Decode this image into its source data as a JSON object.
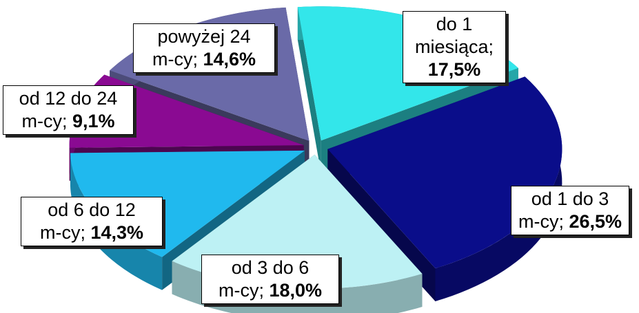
{
  "chart_data": {
    "type": "pie",
    "variant": "3d-exploded",
    "slices": [
      {
        "label_lines": [
          "do 1",
          "miesiąca;"
        ],
        "value_text": "17,5%",
        "value": 17.5,
        "color": "#33e6ea"
      },
      {
        "label_lines": [
          "od 1 do 3",
          "m-cy;"
        ],
        "value_text": "26,5%",
        "value": 26.5,
        "color": "#0a0d8a"
      },
      {
        "label_lines": [
          "od 3 do 6",
          "m-cy;"
        ],
        "value_text": "18,0%",
        "value": 18.0,
        "color": "#bdf1f4"
      },
      {
        "label_lines": [
          "od 6 do 12",
          "m-cy;"
        ],
        "value_text": "14,3%",
        "value": 14.3,
        "color": "#20b9ee"
      },
      {
        "label_lines": [
          "od 12 do 24",
          "m-cy;"
        ],
        "value_text": "9,1%",
        "value": 9.1,
        "color": "#8a0a92"
      },
      {
        "label_lines": [
          "powyżej 24",
          "m-cy;"
        ],
        "value_text": "14,6%",
        "value": 14.6,
        "color": "#6a6aa8"
      }
    ]
  }
}
